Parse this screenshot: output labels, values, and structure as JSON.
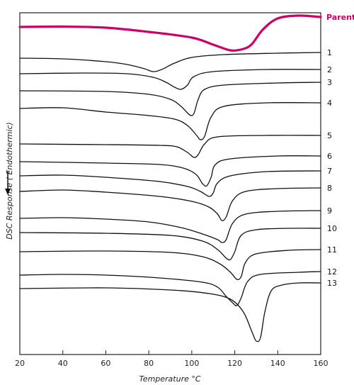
{
  "chart_data": {
    "type": "line",
    "xlabel": "Temperature °C",
    "ylabel": "DSC Response ( Endothermic)",
    "xlim": [
      20,
      160
    ],
    "x_ticks": [
      "20",
      "40",
      "60",
      "80",
      "100",
      "120",
      "140",
      "160"
    ],
    "grid": false,
    "y_direction_note": "endothermic downward",
    "colors": {
      "parent": "#cc0066",
      "curves": "#111111",
      "frame": "#222222"
    },
    "series": [
      {
        "name": "Parent",
        "color": "#cc0066",
        "points": [
          [
            20,
            38
          ],
          [
            40,
            37.5
          ],
          [
            60,
            39
          ],
          [
            80,
            45
          ],
          [
            100,
            53
          ],
          [
            110,
            63
          ],
          [
            118,
            71
          ],
          [
            124,
            69
          ],
          [
            128,
            62
          ],
          [
            133,
            42
          ],
          [
            140,
            26
          ],
          [
            150,
            22
          ],
          [
            160,
            24
          ]
        ]
      },
      {
        "name": "1",
        "points": [
          [
            20,
            82
          ],
          [
            40,
            83
          ],
          [
            60,
            87
          ],
          [
            70,
            91
          ],
          [
            78,
            97
          ],
          [
            82,
            101
          ],
          [
            86,
            98
          ],
          [
            92,
            89
          ],
          [
            100,
            81
          ],
          [
            115,
            77
          ],
          [
            140,
            75
          ],
          [
            160,
            74
          ]
        ]
      },
      {
        "name": "2",
        "points": [
          [
            20,
            104
          ],
          [
            50,
            103
          ],
          [
            70,
            104
          ],
          [
            82,
            109
          ],
          [
            88,
            116
          ],
          [
            92,
            123
          ],
          [
            95,
            126
          ],
          [
            98,
            120
          ],
          [
            101,
            108
          ],
          [
            110,
            101
          ],
          [
            135,
            98
          ],
          [
            160,
            98
          ]
        ]
      },
      {
        "name": "3",
        "points": [
          [
            20,
            128
          ],
          [
            60,
            129
          ],
          [
            80,
            133
          ],
          [
            90,
            140
          ],
          [
            95,
            150
          ],
          [
            99,
            162
          ],
          [
            101,
            160
          ],
          [
            103,
            140
          ],
          [
            106,
            126
          ],
          [
            115,
            120
          ],
          [
            140,
            117
          ],
          [
            160,
            116
          ]
        ]
      },
      {
        "name": "4",
        "points": [
          [
            20,
            153
          ],
          [
            40,
            152
          ],
          [
            60,
            158
          ],
          [
            80,
            163
          ],
          [
            92,
            168
          ],
          [
            98,
            177
          ],
          [
            102,
            190
          ],
          [
            104,
            197
          ],
          [
            106,
            192
          ],
          [
            109,
            165
          ],
          [
            115,
            150
          ],
          [
            135,
            145
          ],
          [
            160,
            145
          ]
        ]
      },
      {
        "name": "5",
        "points": [
          [
            20,
            203
          ],
          [
            60,
            204
          ],
          [
            85,
            205
          ],
          [
            93,
            207
          ],
          [
            98,
            215
          ],
          [
            101,
            222
          ],
          [
            103,
            218
          ],
          [
            106,
            203
          ],
          [
            112,
            193
          ],
          [
            135,
            191
          ],
          [
            160,
            191
          ]
        ]
      },
      {
        "name": "6",
        "points": [
          [
            20,
            228
          ],
          [
            60,
            230
          ],
          [
            85,
            232
          ],
          [
            96,
            237
          ],
          [
            102,
            246
          ],
          [
            105,
            259
          ],
          [
            107,
            262
          ],
          [
            109,
            250
          ],
          [
            111,
            232
          ],
          [
            118,
            224
          ],
          [
            140,
            220
          ],
          [
            160,
            220
          ]
        ]
      },
      {
        "name": "7",
        "points": [
          [
            20,
            248
          ],
          [
            40,
            247
          ],
          [
            60,
            250
          ],
          [
            85,
            256
          ],
          [
            98,
            263
          ],
          [
            104,
            270
          ],
          [
            108,
            277
          ],
          [
            110,
            272
          ],
          [
            112,
            258
          ],
          [
            118,
            248
          ],
          [
            135,
            242
          ],
          [
            160,
            241
          ]
        ]
      },
      {
        "name": "8",
        "points": [
          [
            20,
            270
          ],
          [
            40,
            268
          ],
          [
            60,
            271
          ],
          [
            85,
            277
          ],
          [
            100,
            284
          ],
          [
            108,
            292
          ],
          [
            112,
            302
          ],
          [
            114,
            311
          ],
          [
            116,
            306
          ],
          [
            119,
            283
          ],
          [
            125,
            270
          ],
          [
            140,
            266
          ],
          [
            160,
            265
          ]
        ]
      },
      {
        "name": "9",
        "points": [
          [
            20,
            308
          ],
          [
            40,
            307
          ],
          [
            60,
            309
          ],
          [
            80,
            313
          ],
          [
            95,
            321
          ],
          [
            105,
            330
          ],
          [
            112,
            338
          ],
          [
            114,
            342
          ],
          [
            116,
            338
          ],
          [
            119,
            315
          ],
          [
            125,
            302
          ],
          [
            140,
            298
          ],
          [
            160,
            297
          ]
        ]
      },
      {
        "name": "10",
        "points": [
          [
            20,
            328
          ],
          [
            60,
            329
          ],
          [
            90,
            332
          ],
          [
            105,
            340
          ],
          [
            112,
            352
          ],
          [
            116,
            364
          ],
          [
            118,
            366
          ],
          [
            120,
            355
          ],
          [
            123,
            332
          ],
          [
            130,
            324
          ],
          [
            145,
            322
          ],
          [
            160,
            322
          ]
        ]
      },
      {
        "name": "11",
        "points": [
          [
            20,
            355
          ],
          [
            60,
            354
          ],
          [
            90,
            356
          ],
          [
            105,
            362
          ],
          [
            113,
            372
          ],
          [
            118,
            384
          ],
          [
            121,
            394
          ],
          [
            123,
            390
          ],
          [
            125,
            370
          ],
          [
            130,
            358
          ],
          [
            145,
            353
          ],
          [
            160,
            352
          ]
        ]
      },
      {
        "name": "12",
        "points": [
          [
            20,
            388
          ],
          [
            40,
            387
          ],
          [
            60,
            388
          ],
          [
            85,
            392
          ],
          [
            105,
            398
          ],
          [
            112,
            405
          ],
          [
            116,
            418
          ],
          [
            119,
            427
          ],
          [
            121,
            431
          ],
          [
            123,
            420
          ],
          [
            126,
            397
          ],
          [
            132,
            387
          ],
          [
            150,
            384
          ],
          [
            160,
            383
          ]
        ]
      },
      {
        "name": "13",
        "points": [
          [
            20,
            407
          ],
          [
            60,
            406
          ],
          [
            90,
            409
          ],
          [
            108,
            414
          ],
          [
            118,
            422
          ],
          [
            124,
            440
          ],
          [
            128,
            468
          ],
          [
            130,
            481
          ],
          [
            132,
            476
          ],
          [
            134,
            440
          ],
          [
            137,
            410
          ],
          [
            142,
            402
          ],
          [
            150,
            399
          ],
          [
            160,
            399
          ]
        ]
      }
    ]
  }
}
